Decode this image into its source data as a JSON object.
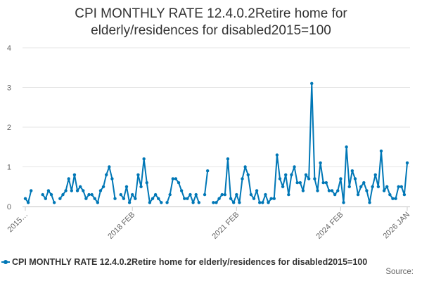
{
  "title_line1": "CPI MONTHLY RATE 12.4.0.2Retire home for",
  "title_line2": "elderly/residences for disabled2015=100",
  "legend_label": "CPI MONTHLY RATE 12.4.0.2Retire home for elderly/residences for disabled2015=100",
  "source_label": "Source:",
  "colors": {
    "series": "#0077b6",
    "grid": "#e6e6e6",
    "text": "#333333"
  },
  "chart_data": {
    "type": "line",
    "title": "CPI MONTHLY RATE 12.4.0.2Retire home for elderly/residences for disabled2015=100",
    "ylim": [
      0,
      4
    ],
    "y_ticks": [
      "0",
      "1",
      "2",
      "3",
      "4"
    ],
    "x_tick_labels": [
      "2015…",
      "2018 FEB",
      "2021 FEB",
      "2024 FEB",
      "2026 JAN"
    ],
    "x_tick_months": [
      "2015-01",
      "2018-02",
      "2021-02",
      "2024-02",
      "2026-01"
    ],
    "grid": true,
    "legend_position": "bottom",
    "series": [
      {
        "name": "CPI MONTHLY RATE 12.4.0.2Retire home for elderly/residences for disabled2015=100",
        "start_month": "2015-01",
        "values": [
          0.2,
          0.1,
          0.4,
          null,
          null,
          null,
          0.3,
          0.2,
          0.4,
          0.3,
          0.1,
          null,
          0.2,
          0.3,
          0.4,
          0.7,
          0.4,
          0.8,
          0.4,
          0.5,
          0.4,
          0.2,
          0.3,
          0.3,
          0.2,
          0.1,
          0.4,
          0.5,
          0.8,
          1.0,
          0.7,
          0.2,
          null,
          0.3,
          0.2,
          0.5,
          0.1,
          0.3,
          0.2,
          0.8,
          0.5,
          1.2,
          0.6,
          0.1,
          0.2,
          0.3,
          0.2,
          0.1,
          null,
          0.1,
          0.3,
          0.7,
          0.7,
          0.6,
          0.4,
          0.2,
          0.2,
          0.3,
          0.1,
          0.3,
          0.1,
          null,
          0.3,
          0.9,
          null,
          0.1,
          0.1,
          0.2,
          0.3,
          0.3,
          1.2,
          0.2,
          0.1,
          0.3,
          0.1,
          0.7,
          1.0,
          0.8,
          0.3,
          0.2,
          0.4,
          0.1,
          0.1,
          0.3,
          0.1,
          0.2,
          0.2,
          1.3,
          0.7,
          0.5,
          0.8,
          0.3,
          0.8,
          1.0,
          0.6,
          0.6,
          0.4,
          0.8,
          0.7,
          3.1,
          0.7,
          0.4,
          1.1,
          0.6,
          0.6,
          0.4,
          0.4,
          0.3,
          0.4,
          0.7,
          0.1,
          1.5,
          0.5,
          0.9,
          0.7,
          0.3,
          0.5,
          0.6,
          0.4,
          0.1,
          0.5,
          0.8,
          0.5,
          1.4,
          0.4,
          0.5,
          0.3,
          0.2,
          0.2,
          0.5,
          0.5,
          0.3,
          1.1
        ]
      }
    ]
  }
}
